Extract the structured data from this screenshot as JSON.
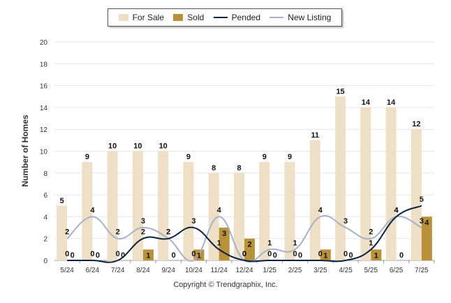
{
  "chart_data": {
    "type": "bar",
    "categories": [
      "5/24",
      "6/24",
      "7/24",
      "8/24",
      "9/24",
      "10/24",
      "11/24",
      "12/24",
      "1/25",
      "2/25",
      "3/25",
      "4/25",
      "5/25",
      "6/25",
      "7/25"
    ],
    "ylabel": "Number of Homes",
    "xlabel": "",
    "ylim": [
      0,
      20
    ],
    "yticks": [
      0,
      2,
      4,
      6,
      8,
      10,
      12,
      14,
      16,
      18,
      20
    ],
    "grid": true,
    "legend_position": "top-center",
    "series": [
      {
        "name": "For Sale",
        "kind": "bar",
        "color": "#ede0c6",
        "values": [
          5,
          9,
          10,
          10,
          10,
          9,
          8,
          8,
          9,
          9,
          11,
          15,
          14,
          14,
          12
        ]
      },
      {
        "name": "Sold",
        "kind": "bar",
        "color": "#b8923a",
        "values": [
          0,
          0,
          0,
          1,
          0,
          1,
          3,
          2,
          0,
          0,
          1,
          0,
          1,
          0,
          4
        ]
      },
      {
        "name": "Pended",
        "kind": "line",
        "color": "#0d2240",
        "values": [
          0,
          0,
          0,
          2,
          2,
          3,
          1,
          0,
          0,
          0,
          0,
          0,
          1,
          4,
          5
        ]
      },
      {
        "name": "New Listing",
        "kind": "line",
        "color": "#a8b0c8",
        "values": [
          2,
          4,
          2,
          3,
          2,
          0,
          4,
          0,
          1,
          1,
          4,
          3,
          2,
          4,
          3
        ]
      }
    ]
  },
  "copyright": "Copyright © Trendgraphix, Inc."
}
